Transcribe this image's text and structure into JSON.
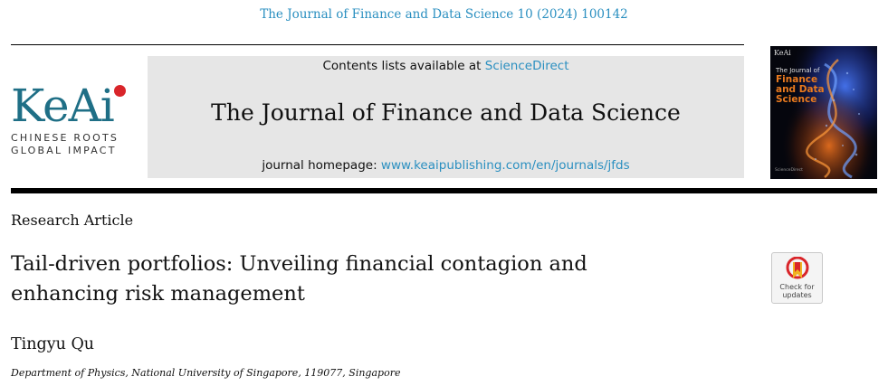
{
  "header": {
    "citation": "The Journal of Finance and Data Science 10 (2024) 100142",
    "contents_prefix": "Contents lists available at ",
    "contents_link": "ScienceDirect",
    "journal_name": "The Journal of Finance and Data Science",
    "homepage_prefix": "journal homepage: ",
    "homepage_link": "www.keaipublishing.com/en/journals/jfds"
  },
  "publisher_logo": {
    "word": "KeAi",
    "tagline_1": "CHINESE ROOTS",
    "tagline_2": "GLOBAL IMPACT",
    "colors": {
      "word": "#1f6f86",
      "dot": "#d9252a"
    }
  },
  "cover": {
    "logo": "KeAi",
    "title_line_small": "The Journal of",
    "title_lines": [
      "Finance",
      "and Data",
      "Science"
    ],
    "bottom_text": "ScienceDirect"
  },
  "article": {
    "type": "Research Article",
    "title": "Tail-driven portfolios: Unveiling financial contagion and enhancing risk management",
    "author": "Tingyu Qu",
    "affiliation": "Department of Physics, National University of Singapore, 119077, Singapore"
  },
  "badge": {
    "line_1": "Check for",
    "line_2": "updates",
    "icon": "bookmark-icon"
  },
  "colors": {
    "link": "#2a8fc0",
    "banner": "#e6e6e6",
    "cover_title": "#e97a1f"
  }
}
